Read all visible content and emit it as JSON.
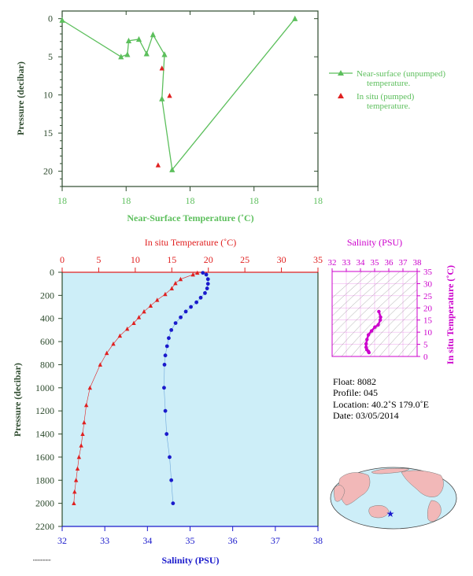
{
  "colors": {
    "axis_dark": "#2d4a2d",
    "near_surface": "#5cbf5c",
    "in_situ_temp": "#e02020",
    "salinity": "#1a1acc",
    "salinity_pink": "#cc00cc",
    "plot_bg": "#cdeef8",
    "land": "#f2b8b8",
    "ocean": "#cdeef8"
  },
  "chart_data": [
    {
      "id": "near-surface",
      "type": "line",
      "xlabel": "Near-Surface Temperature (˚C)",
      "ylabel": "Pressure (decibar)",
      "x_tick_labels": [
        "18",
        "18",
        "18",
        "18",
        "18"
      ],
      "ylim": [
        22,
        -1
      ],
      "y_ticks": [
        0,
        5,
        10,
        15,
        20
      ],
      "legend_position": "right",
      "series": [
        {
          "name": "Near-surface (unpumped) temperature.",
          "marker": "triangle",
          "points": [
            [
              0.0,
              0.2
            ],
            [
              0.46,
              5.0
            ],
            [
              0.51,
              4.7
            ],
            [
              0.52,
              2.9
            ],
            [
              0.6,
              2.7
            ],
            [
              0.66,
              4.6
            ],
            [
              0.71,
              2.1
            ],
            [
              0.8,
              4.7
            ],
            [
              0.78,
              10.5
            ],
            [
              0.86,
              19.8
            ],
            [
              1.82,
              0.0
            ]
          ]
        },
        {
          "name": "In situ (pumped) temperature.",
          "marker": "triangle",
          "points": [
            [
              0.78,
              6.5
            ],
            [
              0.84,
              10.1
            ],
            [
              0.75,
              19.2
            ]
          ]
        }
      ]
    },
    {
      "id": "profile",
      "type": "line",
      "title_top": "In situ Temperature (˚C)",
      "xlabel": "Salinity (PSU)",
      "ylabel": "Pressure (decibar)",
      "temp_ticks": [
        0,
        5,
        10,
        15,
        20,
        25,
        30,
        35
      ],
      "salinity_ticks": [
        32,
        33,
        34,
        35,
        36,
        37,
        38
      ],
      "pressure_ticks": [
        0,
        200,
        400,
        600,
        800,
        1000,
        1200,
        1400,
        1600,
        1800,
        2000,
        2200
      ],
      "series": [
        {
          "name": "In situ Temperature (˚C)",
          "points": [
            [
              18.5,
              5
            ],
            [
              17.9,
              20
            ],
            [
              16.2,
              60
            ],
            [
              15.5,
              95
            ],
            [
              15.0,
              140
            ],
            [
              14.1,
              190
            ],
            [
              13.0,
              240
            ],
            [
              12.1,
              290
            ],
            [
              11.2,
              340
            ],
            [
              10.5,
              390
            ],
            [
              9.8,
              440
            ],
            [
              8.9,
              490
            ],
            [
              7.9,
              550
            ],
            [
              7.0,
              620
            ],
            [
              6.1,
              700
            ],
            [
              5.2,
              800
            ],
            [
              3.8,
              1000
            ],
            [
              3.3,
              1150
            ],
            [
              3.0,
              1300
            ],
            [
              2.8,
              1400
            ],
            [
              2.6,
              1500
            ],
            [
              2.3,
              1600
            ],
            [
              2.1,
              1700
            ],
            [
              1.9,
              1800
            ],
            [
              1.7,
              1900
            ],
            [
              1.6,
              2000
            ]
          ]
        },
        {
          "name": "Salinity (PSU)",
          "points": [
            [
              35.3,
              5
            ],
            [
              35.38,
              20
            ],
            [
              35.42,
              60
            ],
            [
              35.42,
              100
            ],
            [
              35.4,
              140
            ],
            [
              35.35,
              180
            ],
            [
              35.25,
              220
            ],
            [
              35.15,
              260
            ],
            [
              35.02,
              300
            ],
            [
              34.9,
              340
            ],
            [
              34.78,
              390
            ],
            [
              34.66,
              440
            ],
            [
              34.56,
              500
            ],
            [
              34.5,
              570
            ],
            [
              34.46,
              640
            ],
            [
              34.42,
              720
            ],
            [
              34.4,
              800
            ],
            [
              34.39,
              1000
            ],
            [
              34.42,
              1200
            ],
            [
              34.45,
              1400
            ],
            [
              34.52,
              1600
            ],
            [
              34.56,
              1800
            ],
            [
              34.6,
              2000
            ]
          ]
        }
      ]
    },
    {
      "id": "ts-inset",
      "type": "scatter",
      "title_top": "Salinity (PSU)",
      "ylabel": "In situ Temperature (˚C)",
      "salinity_ticks": [
        32,
        33,
        34,
        35,
        36,
        37,
        38
      ],
      "temp_ticks": [
        0,
        5,
        10,
        15,
        20,
        25,
        30,
        35
      ],
      "points": [
        [
          35.3,
          18.5
        ],
        [
          35.42,
          16.2
        ],
        [
          35.4,
          15.0
        ],
        [
          35.25,
          13.0
        ],
        [
          35.02,
          12.1
        ],
        [
          34.78,
          10.5
        ],
        [
          34.56,
          8.9
        ],
        [
          34.46,
          7.0
        ],
        [
          34.4,
          5.2
        ],
        [
          34.4,
          3.8
        ],
        [
          34.45,
          2.8
        ],
        [
          34.56,
          2.1
        ],
        [
          34.6,
          1.6
        ]
      ]
    }
  ],
  "meta": {
    "float": "Float:  8082",
    "profile": "Profile:  045",
    "location": "Location:  40.2˚S  179.0˚E",
    "date": "Date:  03/05/2014"
  },
  "map": {
    "marker": "float-location",
    "lat": -40.2,
    "lon": 179.0
  }
}
